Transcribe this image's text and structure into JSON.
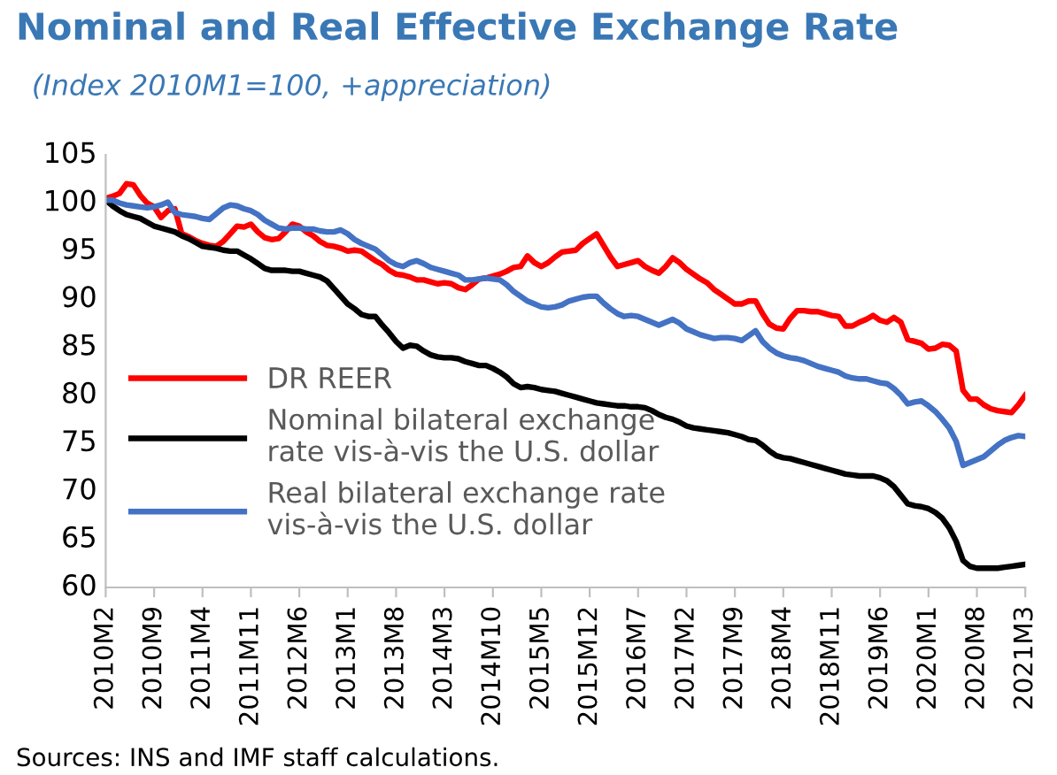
{
  "chart_data": {
    "type": "line",
    "title": "Nominal and Real Effective Exchange Rate",
    "subtitle": "(Index 2010M1=100, +appreciation)",
    "annotations": [
      "Sources: INS and IMF staff calculations."
    ],
    "categories": [
      "2010M2",
      null,
      null,
      null,
      null,
      null,
      null,
      "2010M9",
      null,
      null,
      null,
      null,
      null,
      null,
      "2011M4",
      null,
      null,
      null,
      null,
      null,
      null,
      "2011M11",
      null,
      null,
      null,
      null,
      null,
      null,
      "2012M6",
      null,
      null,
      null,
      null,
      null,
      null,
      "2013M1",
      null,
      null,
      null,
      null,
      null,
      null,
      "2013M8",
      null,
      null,
      null,
      null,
      null,
      null,
      "2014M3",
      null,
      null,
      null,
      null,
      null,
      null,
      "2014M10",
      null,
      null,
      null,
      null,
      null,
      null,
      "2015M5",
      null,
      null,
      null,
      null,
      null,
      null,
      "2015M12",
      null,
      null,
      null,
      null,
      null,
      null,
      "2016M7",
      null,
      null,
      null,
      null,
      null,
      null,
      "2017M2",
      null,
      null,
      null,
      null,
      null,
      null,
      "2017M9",
      null,
      null,
      null,
      null,
      null,
      null,
      "2018M4",
      null,
      null,
      null,
      null,
      null,
      null,
      "2018M11",
      null,
      null,
      null,
      null,
      null,
      null,
      "2019M6",
      null,
      null,
      null,
      null,
      null,
      null,
      "2020M1",
      null,
      null,
      null,
      null,
      null,
      null,
      "2020M8",
      null,
      null,
      null,
      null,
      null,
      null,
      "2021M3"
    ],
    "series": [
      {
        "name": "DR REER",
        "color": "#ff0000",
        "values": [
          100.5,
          100.7,
          101,
          102,
          101.9,
          100.8,
          100,
          99.6,
          98.5,
          99.2,
          99.4,
          96.8,
          96.5,
          96.1,
          95.8,
          95.6,
          95.5,
          96,
          96.8,
          97.6,
          97.5,
          97.8,
          97,
          96.4,
          96.2,
          96.3,
          97,
          97.8,
          97.6,
          97,
          96.6,
          96,
          95.6,
          95.5,
          95.3,
          95,
          95.1,
          95,
          94.5,
          94,
          93.6,
          93,
          92.6,
          92.5,
          92.3,
          92,
          92,
          91.8,
          91.6,
          91.7,
          91.6,
          91.2,
          91,
          91.5,
          92.1,
          92.2,
          92.4,
          92.6,
          92.9,
          93.3,
          93.4,
          94.5,
          93.8,
          93.4,
          93.8,
          94.4,
          94.9,
          95,
          95.1,
          95.8,
          96.3,
          96.8,
          95.6,
          94.4,
          93.4,
          93.6,
          93.8,
          94,
          93.4,
          93,
          92.7,
          93.4,
          94.3,
          93.8,
          93.1,
          92.6,
          92.1,
          91.7,
          91,
          90.5,
          90,
          89.5,
          89.5,
          89.8,
          89.8,
          88.5,
          87.4,
          87,
          86.9,
          88,
          88.8,
          88.8,
          88.7,
          88.7,
          88.5,
          88.3,
          88.2,
          87.2,
          87.2,
          87.6,
          87.9,
          88.3,
          87.8,
          87.6,
          88.1,
          87.6,
          85.8,
          85.6,
          85.4,
          84.8,
          84.9,
          85.3,
          85.2,
          84.6,
          80.5,
          79.6,
          79.6,
          79,
          78.6,
          78.4,
          78.3,
          78.2,
          79,
          80
        ]
      },
      {
        "name": "Nominal bilateral exchange\nrate vis-à-vis the U.S. dollar",
        "color": "#000000",
        "values": [
          100.3,
          99.7,
          99.2,
          98.8,
          98.6,
          98.4,
          98,
          97.6,
          97.4,
          97.2,
          97,
          96.6,
          96.3,
          95.9,
          95.5,
          95.4,
          95.3,
          95.1,
          95,
          95,
          94.6,
          94.2,
          93.7,
          93.2,
          93,
          93,
          93,
          92.9,
          92.9,
          92.7,
          92.5,
          92.3,
          91.9,
          91.1,
          90.3,
          89.5,
          89,
          88.4,
          88.2,
          88.2,
          87.3,
          86.5,
          85.6,
          84.9,
          85.2,
          85.1,
          84.6,
          84.2,
          84,
          83.9,
          83.9,
          83.8,
          83.5,
          83.3,
          83.1,
          83.1,
          82.8,
          82.4,
          81.9,
          81.2,
          80.8,
          80.9,
          80.8,
          80.6,
          80.5,
          80.4,
          80.2,
          80,
          79.8,
          79.6,
          79.4,
          79.2,
          79.1,
          79,
          78.9,
          78.9,
          78.8,
          78.8,
          78.7,
          78.4,
          78,
          77.7,
          77.5,
          77.2,
          76.8,
          76.6,
          76.5,
          76.4,
          76.3,
          76.2,
          76.1,
          75.9,
          75.7,
          75.4,
          75.3,
          74.8,
          74.2,
          73.7,
          73.5,
          73.4,
          73.2,
          73,
          72.8,
          72.6,
          72.4,
          72.2,
          72,
          71.8,
          71.7,
          71.6,
          71.6,
          71.6,
          71.4,
          71.1,
          70.5,
          69.6,
          68.7,
          68.5,
          68.4,
          68.2,
          67.8,
          67.2,
          66.2,
          64.8,
          62.8,
          62.2,
          62,
          62,
          62,
          62,
          62.1,
          62.2,
          62.3,
          62.4
        ]
      },
      {
        "name": "Real bilateral exchange rate\nvis-à-vis the U.S. dollar",
        "color": "#4472c4",
        "values": [
          100.3,
          100.3,
          100,
          99.8,
          99.7,
          99.6,
          99.5,
          99.6,
          99.8,
          100.1,
          99,
          98.8,
          98.7,
          98.6,
          98.4,
          98.3,
          98.9,
          99.5,
          99.8,
          99.7,
          99.4,
          99.2,
          98.8,
          98.2,
          97.8,
          97.4,
          97.3,
          97.4,
          97.4,
          97.3,
          97.3,
          97.1,
          97,
          97,
          97.2,
          96.8,
          96.2,
          95.8,
          95.5,
          95.2,
          94.6,
          94,
          93.6,
          93.4,
          93.8,
          94,
          93.7,
          93.3,
          93.1,
          92.9,
          92.7,
          92.5,
          92,
          92,
          92.1,
          92.2,
          92.1,
          92,
          91.5,
          90.8,
          90.3,
          89.8,
          89.5,
          89.2,
          89.1,
          89.2,
          89.4,
          89.8,
          90,
          90.2,
          90.3,
          90.3,
          89.6,
          89,
          88.5,
          88.2,
          88.3,
          88.2,
          87.9,
          87.6,
          87.3,
          87.6,
          87.9,
          87.5,
          86.9,
          86.6,
          86.3,
          86.1,
          85.9,
          86,
          86,
          85.9,
          85.7,
          86.2,
          86.7,
          85.6,
          84.9,
          84.4,
          84.1,
          83.9,
          83.8,
          83.6,
          83.3,
          83,
          82.8,
          82.6,
          82.4,
          82,
          81.8,
          81.7,
          81.7,
          81.5,
          81.3,
          81.2,
          80.7,
          80,
          79.1,
          79.3,
          79.4,
          78.9,
          78.3,
          77.5,
          76.6,
          75.2,
          72.7,
          73,
          73.3,
          73.6,
          74.2,
          74.8,
          75.3,
          75.6,
          75.8,
          75.7
        ]
      }
    ],
    "ylim": [
      60,
      105
    ],
    "yticks": [
      60,
      65,
      70,
      75,
      80,
      85,
      90,
      95,
      100,
      105
    ],
    "legend": "center left",
    "line_style": "solid",
    "marker": "none"
  }
}
